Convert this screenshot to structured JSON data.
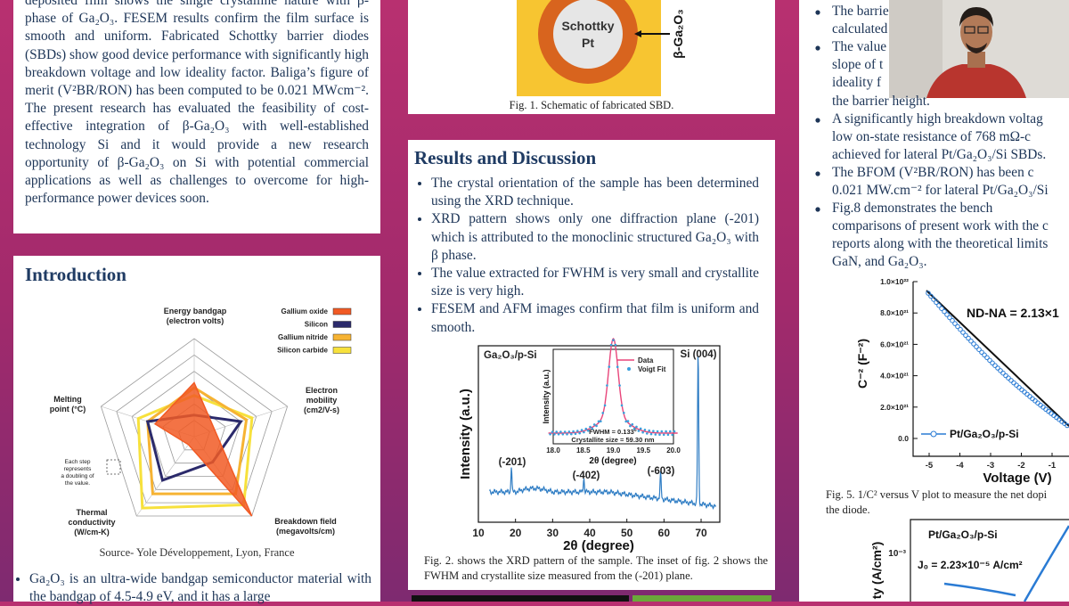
{
  "abstract": {
    "text": "deposited film shows the single crystalline nature with β-phase of Ga₂O₃. FESEM results confirm the film surface is smooth and uniform. Fabricated Schottky barrier diodes (SBDs) show good device performance with significantly high breakdown voltage and low ideality factor. Baliga’s figure of merit (V²BR/RON) has been computed to be 0.021 MWcm⁻². The present research has evaluated the feasibility of cost-effective integration of β-Ga₂O₃ with well-established technology Si and it would provide a new research opportunity of β-Ga₂O₃ on Si with potential commercial applications as well as challenges to overcome for high-performance power devices soon."
  },
  "introduction": {
    "title": "Introduction",
    "figure": {
      "axes": [
        "Energy bandgap\n(electron volts)",
        "Electron\nmobility\n(cm2/V-s)",
        "Breakdown field\n(megavolts/cm)",
        "Thermal\nconductivity\n(W/cm-K)",
        "Melting\npoint (°C)"
      ],
      "legend": [
        {
          "name": "Gallium oxide",
          "color": "#f15a24"
        },
        {
          "name": "Silicon",
          "color": "#2b2a6b"
        },
        {
          "name": "Gallium nitride",
          "color": "#f6b333"
        },
        {
          "name": "Silicon carbide",
          "color": "#f7e13c"
        }
      ],
      "note": "Each step\nrepresents\na doubling of\nthe value."
    },
    "source": "Source- Yole Développement, Lyon, France",
    "bullets": [
      "Ga₂O₃ is an ultra-wide bandgap semiconductor material with the bandgap of 4.5-4.9 eV, and it has a large"
    ]
  },
  "figure1": {
    "metal": "Schottky\nPt",
    "layer": "β-Ga₂O₃",
    "caption": "Fig. 1. Schematic of fabricated SBD."
  },
  "results": {
    "title": "Results and Discussion",
    "bullets": [
      "The crystal orientation of the sample has been determined using the XRD technique.",
      "XRD pattern shows only one diffraction plane (-201) which is attributed to the monoclinic structured Ga₂O₃ with β phase.",
      "The value extracted for FWHM is very small and crystallite size is very high.",
      "FESEM and AFM images confirm that film is uniform and smooth."
    ],
    "figure2": {
      "sample": "Ga₂O₃/p-Si",
      "peaks": [
        "(-201)",
        "(-402)",
        "(-603)",
        "Si (004)"
      ],
      "ylabel": "Intensity (a.u.)",
      "xlabel": "2θ (degree)",
      "xticks": [
        "10",
        "20",
        "30",
        "40",
        "50",
        "60",
        "70"
      ],
      "inset": {
        "legend": [
          "Data",
          "Voigt Fit"
        ],
        "ylabel": "Intensity (a.u.)",
        "xlabel": "2θ (degree)",
        "xticks": [
          "18.0",
          "18.5",
          "19.0",
          "19.5",
          "20.0"
        ],
        "fwhm": "FWHM = 0.133°",
        "size": "Crystallite size = 59.30 nm"
      }
    },
    "caption": "Fig. 2. shows the XRD pattern of the sample. The inset of fig. 2 shows the FWHM and crystallite size measured from the (-201) plane."
  },
  "right": {
    "bullets": [
      [
        "The barrie",
        "calculated"
      ],
      [
        "The value",
        "slope of t",
        "ideality f",
        "the barrier height."
      ],
      [
        "A significantly high breakdown voltag",
        "low on-state resistance of 768 mΩ-c",
        "achieved for lateral Pt/Ga₂O₃/Si SBDs."
      ],
      [
        "The BFOM (V²BR/RON) has been c",
        "0.021 MW.cm⁻² for lateral Pt/Ga₂O₃/Si"
      ],
      [
        "Fig.8 demonstrates the bench",
        "comparisons of present work with the c",
        "reports along with the theoretical limits",
        "GaN, and Ga₂O₃."
      ]
    ],
    "figure5": {
      "yticks": [
        "1.0×10²²",
        "8.0×10²¹",
        "6.0×10²¹",
        "4.0×10²¹",
        "2.0×10²¹",
        "0.0"
      ],
      "xticks": [
        "-5",
        "-4",
        "-3",
        "-2",
        "-1"
      ],
      "ylabel": "C⁻² (F⁻²)",
      "xlabel": "Voltage (V)",
      "annotation": "ND-NA = 2.13×1",
      "legend": "Pt/Ga₂O₃/p-Si"
    },
    "caption": [
      "Fig. 5. 1/C² versus V plot to measure the net dopi",
      "the diode."
    ],
    "figure8": {
      "sample": "Pt/Ga₂O₃/p-Si",
      "j0": "J₀ = 2.23×10⁻⁵ A/cm²",
      "ytick": "10⁻³",
      "ylabel": "ty (A/cm²)"
    }
  }
}
